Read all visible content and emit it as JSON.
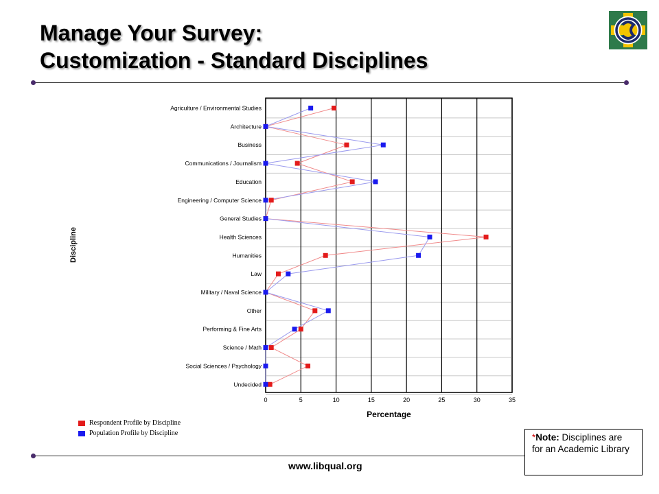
{
  "slide": {
    "title_line1": "Manage Your Survey:",
    "title_line2": "Customization - Standard Disciplines",
    "footer_url": "www.libqual.org",
    "note_star": "*",
    "note_bold": "Note:",
    "note_text": " Disciplines are for an Academic Library"
  },
  "colors": {
    "respondent": "#e31b1b",
    "population": "#1a1aee",
    "respondent_line": "#f08a8a",
    "population_line": "#9a9aee",
    "rule": "#2b2b2b",
    "dot": "#4a2c6b",
    "logo_green": "#2e7a4a",
    "logo_navy": "#1d2a6b",
    "logo_yellow": "#f4c400"
  },
  "logo": {
    "icon": "libqual-logo-icon"
  },
  "chart_data": {
    "type": "line",
    "orientation": "horizontal",
    "xlabel": "Percentage",
    "ylabel": "Discipline",
    "xlim": [
      0,
      35
    ],
    "xticks": [
      0,
      5,
      10,
      15,
      20,
      25,
      30,
      35
    ],
    "grid": true,
    "legend_position": "bottom-left",
    "categories": [
      "Agriculture / Environmental Studies",
      "Architecture",
      "Business",
      "Communications / Journalism",
      "Education",
      "Engineering / Computer Science",
      "General Studies",
      "Health Sciences",
      "Humanities",
      "Law",
      "Military / Naval Science",
      "Other",
      "Performing & Fine Arts",
      "Science / Math",
      "Social Sciences / Psychology",
      "Undecided"
    ],
    "series": [
      {
        "name": "Respondent Profile by Discipline",
        "values": [
          9.7,
          0,
          11.5,
          4.5,
          12.3,
          0.8,
          0,
          31.3,
          8.5,
          1.8,
          0,
          7.0,
          5.0,
          0.8,
          6.0,
          0.6
        ]
      },
      {
        "name": "Population Profile by Discipline",
        "values": [
          6.4,
          0,
          16.7,
          0,
          15.6,
          0,
          0,
          23.3,
          21.7,
          3.2,
          0,
          8.9,
          4.1,
          0,
          0,
          0
        ]
      }
    ]
  }
}
